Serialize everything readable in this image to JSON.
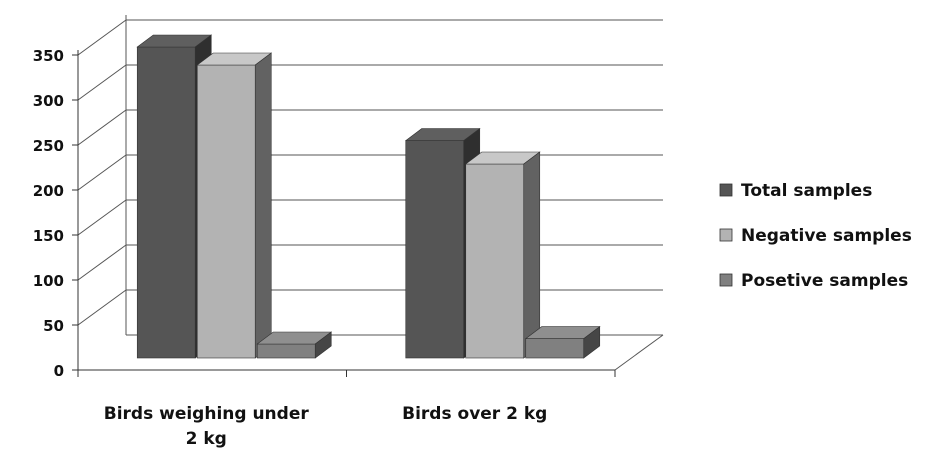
{
  "chart_data": {
    "type": "bar",
    "style": "3d-clustered-column",
    "title": "",
    "xlabel": "",
    "ylabel": "",
    "categories": [
      "Birds weighing under 2 kg",
      "Birds over 2 kg"
    ],
    "category_lines": [
      [
        "Birds weighing under",
        "2 kg"
      ],
      [
        "Birds over 2 kg"
      ]
    ],
    "series": [
      {
        "name": "Total samples",
        "values": [
          350,
          246
        ],
        "color": "#555555"
      },
      {
        "name": "Negative samples",
        "values": [
          330,
          220
        ],
        "color": "#b3b3b3"
      },
      {
        "name": "Posetive samples",
        "values": [
          20,
          26
        ],
        "color": "#808080"
      }
    ],
    "ylim": [
      0,
      350
    ],
    "yticks": [
      "0",
      "50",
      "100",
      "150",
      "200",
      "250",
      "300",
      "350"
    ],
    "grid": true,
    "legend_position": "right"
  }
}
